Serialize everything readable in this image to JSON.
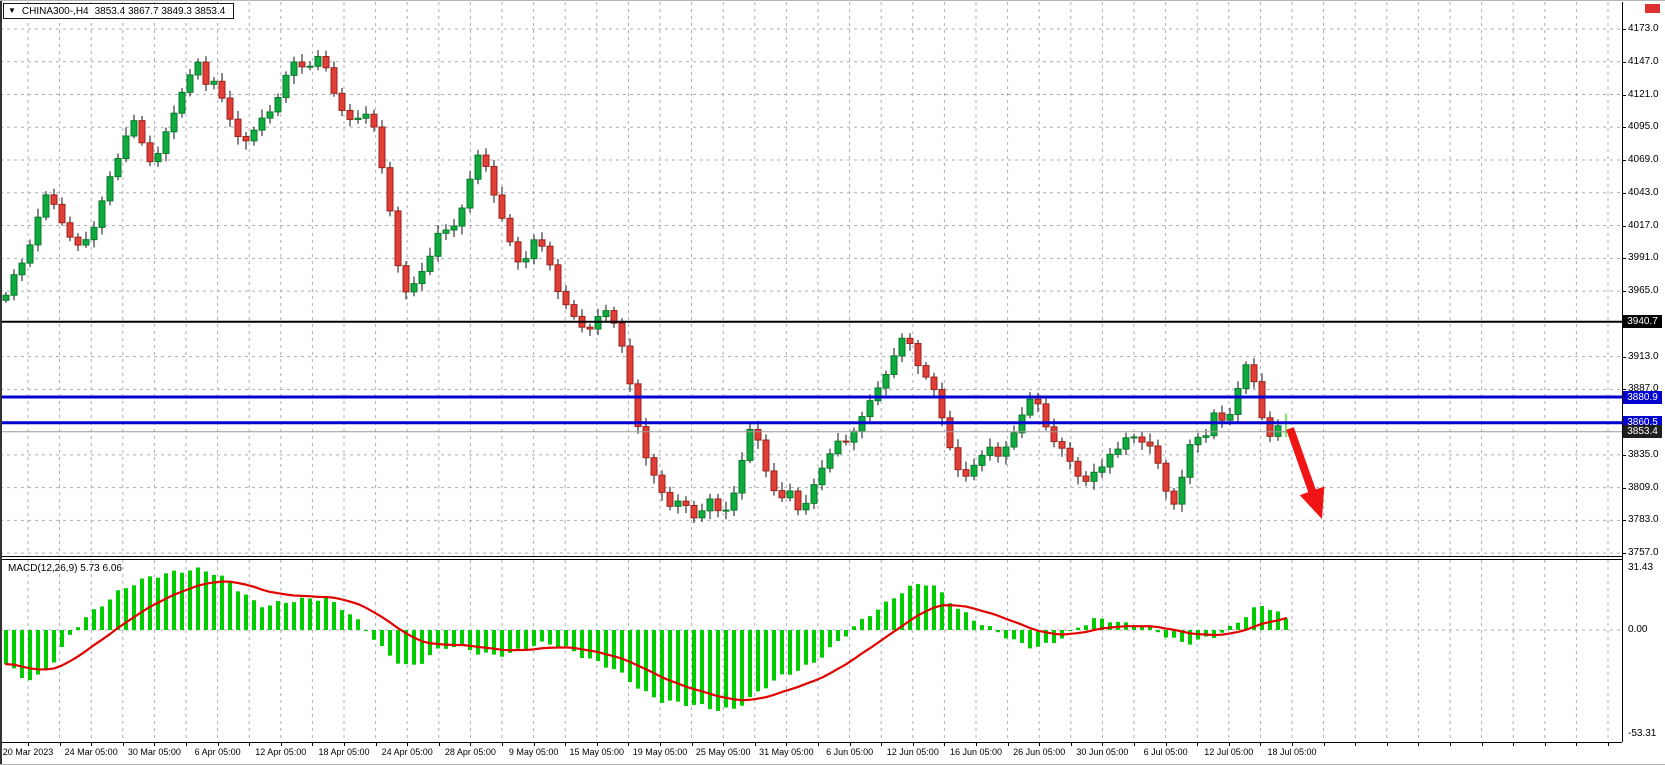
{
  "chart": {
    "title_bar": {
      "dropdown_icon": "▼",
      "symbol_period": "CHINA300-,H4",
      "ohlc": "3853.4 3867.7 3849.3 3853.4"
    },
    "price_axis_labels": [
      "4173.0",
      "4147.0",
      "4121.0",
      "4095.0",
      "4069.0",
      "4043.0",
      "4017.0",
      "3991.0",
      "3965.0",
      "3913.0",
      "3887.0",
      "3835.0",
      "3809.0",
      "3783.0",
      "3757.0"
    ],
    "line_badges": {
      "resistance_black": "3940.7",
      "blue_upper": "3880.9",
      "blue_lower": "3860.5",
      "current": "3853.4"
    },
    "time_axis_labels": [
      "20 Mar 2023",
      "24 Mar 05:00",
      "30 Mar 05:00",
      "6 Apr 05:00",
      "12 Apr 05:00",
      "18 Apr 05:00",
      "24 Apr 05:00",
      "28 Apr 05:00",
      "9 May 05:00",
      "15 May 05:00",
      "19 May 05:00",
      "25 May 05:00",
      "31 May 05:00",
      "6 Jun 05:00",
      "12 Jun 05:00",
      "16 Jun 05:00",
      "26 Jun 05:00",
      "30 Jun 05:00",
      "6 Jul 05:00",
      "12 Jul 05:00",
      "18 Jul 05:00"
    ],
    "macd_label": "MACD(12,26,9) 5.73 6.06",
    "macd_axis_labels": [
      "31.43",
      "0.00",
      "-53.31"
    ]
  },
  "chart_data": [
    {
      "type": "candlestick",
      "symbol": "CHINA300-",
      "timeframe": "H4",
      "ylim": [
        3754,
        4195
      ],
      "price_gridlines": [
        4173,
        4147,
        4121,
        4095,
        4069,
        4043,
        4017,
        3991,
        3965,
        3913,
        3887,
        3835,
        3809,
        3783,
        3757
      ],
      "hlines": [
        {
          "price": 3940.7,
          "color": "#000000",
          "width": 2,
          "label": "3940.7"
        },
        {
          "price": 3880.9,
          "color": "#0202cf",
          "width": 3,
          "label": "3880.9"
        },
        {
          "price": 3860.5,
          "color": "#0202cf",
          "width": 3,
          "label": "3860.5"
        }
      ],
      "current_price": 3853.4,
      "last_candle": {
        "open": 3853.4,
        "high": 3867.7,
        "low": 3849.3,
        "close": 3853.4
      },
      "peak": {
        "x": 314,
        "high": 4172
      },
      "annotation_arrow": {
        "tail": [
          1290,
          3856
        ],
        "tip": [
          1322,
          3784
        ]
      },
      "close_anchors": [
        [
          5,
          3958
        ],
        [
          15,
          3975
        ],
        [
          25,
          3992
        ],
        [
          35,
          4018
        ],
        [
          46,
          4040
        ],
        [
          57,
          4036
        ],
        [
          66,
          4015
        ],
        [
          76,
          3998
        ],
        [
          86,
          4008
        ],
        [
          96,
          4020
        ],
        [
          106,
          4042
        ],
        [
          116,
          4066
        ],
        [
          126,
          4088
        ],
        [
          134,
          4096
        ],
        [
          142,
          4080
        ],
        [
          152,
          4068
        ],
        [
          162,
          4082
        ],
        [
          172,
          4102
        ],
        [
          182,
          4128
        ],
        [
          192,
          4142
        ],
        [
          200,
          4146
        ],
        [
          208,
          4124
        ],
        [
          216,
          4138
        ],
        [
          224,
          4110
        ],
        [
          232,
          4092
        ],
        [
          240,
          4084
        ],
        [
          250,
          4086
        ],
        [
          258,
          4094
        ],
        [
          266,
          4102
        ],
        [
          274,
          4114
        ],
        [
          282,
          4130
        ],
        [
          290,
          4142
        ],
        [
          298,
          4150
        ],
        [
          306,
          4144
        ],
        [
          314,
          4152
        ],
        [
          320,
          4150
        ],
        [
          328,
          4138
        ],
        [
          336,
          4120
        ],
        [
          344,
          4106
        ],
        [
          352,
          4094
        ],
        [
          360,
          4100
        ],
        [
          368,
          4108
        ],
        [
          376,
          4090
        ],
        [
          384,
          4048
        ],
        [
          392,
          4020
        ],
        [
          400,
          3978
        ],
        [
          408,
          3962
        ],
        [
          416,
          3972
        ],
        [
          424,
          3986
        ],
        [
          432,
          4002
        ],
        [
          440,
          4016
        ],
        [
          448,
          4010
        ],
        [
          456,
          4020
        ],
        [
          464,
          4038
        ],
        [
          472,
          4056
        ],
        [
          480,
          4072
        ],
        [
          488,
          4060
        ],
        [
          496,
          4036
        ],
        [
          504,
          4014
        ],
        [
          512,
          3996
        ],
        [
          520,
          3988
        ],
        [
          528,
          3996
        ],
        [
          536,
          4008
        ],
        [
          544,
          3998
        ],
        [
          552,
          3988
        ],
        [
          560,
          3962
        ],
        [
          568,
          3950
        ],
        [
          576,
          3942
        ],
        [
          584,
          3938
        ],
        [
          592,
          3934
        ],
        [
          600,
          3942
        ],
        [
          608,
          3948
        ],
        [
          616,
          3938
        ],
        [
          624,
          3914
        ],
        [
          632,
          3878
        ],
        [
          640,
          3850
        ],
        [
          648,
          3832
        ],
        [
          656,
          3816
        ],
        [
          664,
          3800
        ],
        [
          672,
          3796
        ],
        [
          680,
          3806
        ],
        [
          688,
          3792
        ],
        [
          696,
          3780
        ],
        [
          704,
          3796
        ],
        [
          712,
          3804
        ],
        [
          720,
          3782
        ],
        [
          728,
          3788
        ],
        [
          736,
          3810
        ],
        [
          744,
          3838
        ],
        [
          752,
          3856
        ],
        [
          760,
          3840
        ],
        [
          768,
          3820
        ],
        [
          776,
          3806
        ],
        [
          784,
          3798
        ],
        [
          792,
          3810
        ],
        [
          800,
          3792
        ],
        [
          808,
          3802
        ],
        [
          816,
          3812
        ],
        [
          824,
          3828
        ],
        [
          832,
          3842
        ],
        [
          840,
          3846
        ],
        [
          848,
          3838
        ],
        [
          856,
          3856
        ],
        [
          864,
          3870
        ],
        [
          872,
          3878
        ],
        [
          880,
          3886
        ],
        [
          888,
          3904
        ],
        [
          896,
          3922
        ],
        [
          904,
          3930
        ],
        [
          912,
          3920
        ],
        [
          920,
          3906
        ],
        [
          928,
          3900
        ],
        [
          936,
          3882
        ],
        [
          944,
          3856
        ],
        [
          952,
          3838
        ],
        [
          960,
          3820
        ],
        [
          968,
          3812
        ],
        [
          976,
          3826
        ],
        [
          984,
          3838
        ],
        [
          992,
          3842
        ],
        [
          1000,
          3826
        ],
        [
          1008,
          3844
        ],
        [
          1016,
          3860
        ],
        [
          1024,
          3872
        ],
        [
          1032,
          3880
        ],
        [
          1040,
          3876
        ],
        [
          1048,
          3858
        ],
        [
          1056,
          3844
        ],
        [
          1064,
          3836
        ],
        [
          1072,
          3828
        ],
        [
          1080,
          3818
        ],
        [
          1088,
          3810
        ],
        [
          1096,
          3818
        ],
        [
          1104,
          3826
        ],
        [
          1112,
          3840
        ],
        [
          1120,
          3836
        ],
        [
          1128,
          3848
        ],
        [
          1136,
          3852
        ],
        [
          1144,
          3848
        ],
        [
          1152,
          3840
        ],
        [
          1160,
          3824
        ],
        [
          1168,
          3806
        ],
        [
          1176,
          3798
        ],
        [
          1184,
          3822
        ],
        [
          1192,
          3848
        ],
        [
          1200,
          3852
        ],
        [
          1208,
          3850
        ],
        [
          1216,
          3868
        ],
        [
          1224,
          3856
        ],
        [
          1232,
          3872
        ],
        [
          1240,
          3892
        ],
        [
          1248,
          3906
        ],
        [
          1256,
          3888
        ],
        [
          1264,
          3862
        ],
        [
          1272,
          3848
        ],
        [
          1280,
          3860
        ],
        [
          1287,
          3853.4
        ]
      ]
    },
    {
      "type": "bar",
      "name": "MACD(12,26,9)",
      "current_macd": 5.73,
      "current_signal": 6.06,
      "ylim": [
        -57,
        36.7
      ],
      "zero_gridline": true,
      "macd_anchors": [
        [
          5,
          -17
        ],
        [
          15,
          -21
        ],
        [
          25,
          -25
        ],
        [
          35,
          -25
        ],
        [
          45,
          -21
        ],
        [
          55,
          -15
        ],
        [
          65,
          -7
        ],
        [
          75,
          1
        ],
        [
          85,
          6
        ],
        [
          95,
          10
        ],
        [
          105,
          14
        ],
        [
          120,
          20
        ],
        [
          135,
          24
        ],
        [
          150,
          27
        ],
        [
          165,
          28.5
        ],
        [
          180,
          30
        ],
        [
          195,
          31
        ],
        [
          210,
          30
        ],
        [
          225,
          26
        ],
        [
          240,
          20
        ],
        [
          255,
          14
        ],
        [
          265,
          12
        ],
        [
          280,
          14
        ],
        [
          295,
          15
        ],
        [
          310,
          16
        ],
        [
          325,
          16
        ],
        [
          340,
          12
        ],
        [
          355,
          6
        ],
        [
          370,
          -2
        ],
        [
          385,
          -11
        ],
        [
          400,
          -17
        ],
        [
          410,
          -19
        ],
        [
          420,
          -17
        ],
        [
          435,
          -11
        ],
        [
          450,
          -8
        ],
        [
          465,
          -9
        ],
        [
          480,
          -12
        ],
        [
          495,
          -13
        ],
        [
          510,
          -12
        ],
        [
          525,
          -9
        ],
        [
          540,
          -7
        ],
        [
          555,
          -7
        ],
        [
          570,
          -10
        ],
        [
          585,
          -14
        ],
        [
          600,
          -17
        ],
        [
          615,
          -20
        ],
        [
          630,
          -26
        ],
        [
          645,
          -32
        ],
        [
          660,
          -36
        ],
        [
          675,
          -37
        ],
        [
          690,
          -38
        ],
        [
          705,
          -39
        ],
        [
          720,
          -41
        ],
        [
          735,
          -40
        ],
        [
          750,
          -35
        ],
        [
          765,
          -29
        ],
        [
          780,
          -24
        ],
        [
          795,
          -21
        ],
        [
          810,
          -18
        ],
        [
          825,
          -12
        ],
        [
          840,
          -5
        ],
        [
          855,
          2
        ],
        [
          870,
          8
        ],
        [
          885,
          13
        ],
        [
          900,
          19
        ],
        [
          915,
          23
        ],
        [
          925,
          24
        ],
        [
          935,
          22
        ],
        [
          945,
          17
        ],
        [
          960,
          10
        ],
        [
          975,
          5
        ],
        [
          990,
          1
        ],
        [
          1005,
          -3
        ],
        [
          1020,
          -7
        ],
        [
          1035,
          -9
        ],
        [
          1050,
          -7
        ],
        [
          1065,
          -3
        ],
        [
          1080,
          2
        ],
        [
          1095,
          5.5
        ],
        [
          1110,
          5
        ],
        [
          1125,
          3
        ],
        [
          1140,
          2.5
        ],
        [
          1155,
          0
        ],
        [
          1170,
          -4
        ],
        [
          1185,
          -7
        ],
        [
          1200,
          -5
        ],
        [
          1215,
          -3
        ],
        [
          1230,
          1
        ],
        [
          1245,
          7
        ],
        [
          1255,
          11
        ],
        [
          1265,
          12.5
        ],
        [
          1275,
          10
        ],
        [
          1287,
          5.73
        ]
      ]
    }
  ],
  "colors": {
    "background": "#ffffff",
    "grid": "#a8aeb9",
    "candle_up": "#0fab3f",
    "candle_up_border": "#0a7a2b",
    "candle_down": "#e23e36",
    "candle_down_border": "#99231d",
    "wick": "#111111",
    "last_candle": "#56e73c",
    "current_price_line": "#9a9a9a",
    "current_badge_bg": "#1f1f1f",
    "macd_bar": "#00cc00",
    "macd_signal": "#e10000",
    "arrow": "#f01414",
    "axis_text": "#000000"
  }
}
